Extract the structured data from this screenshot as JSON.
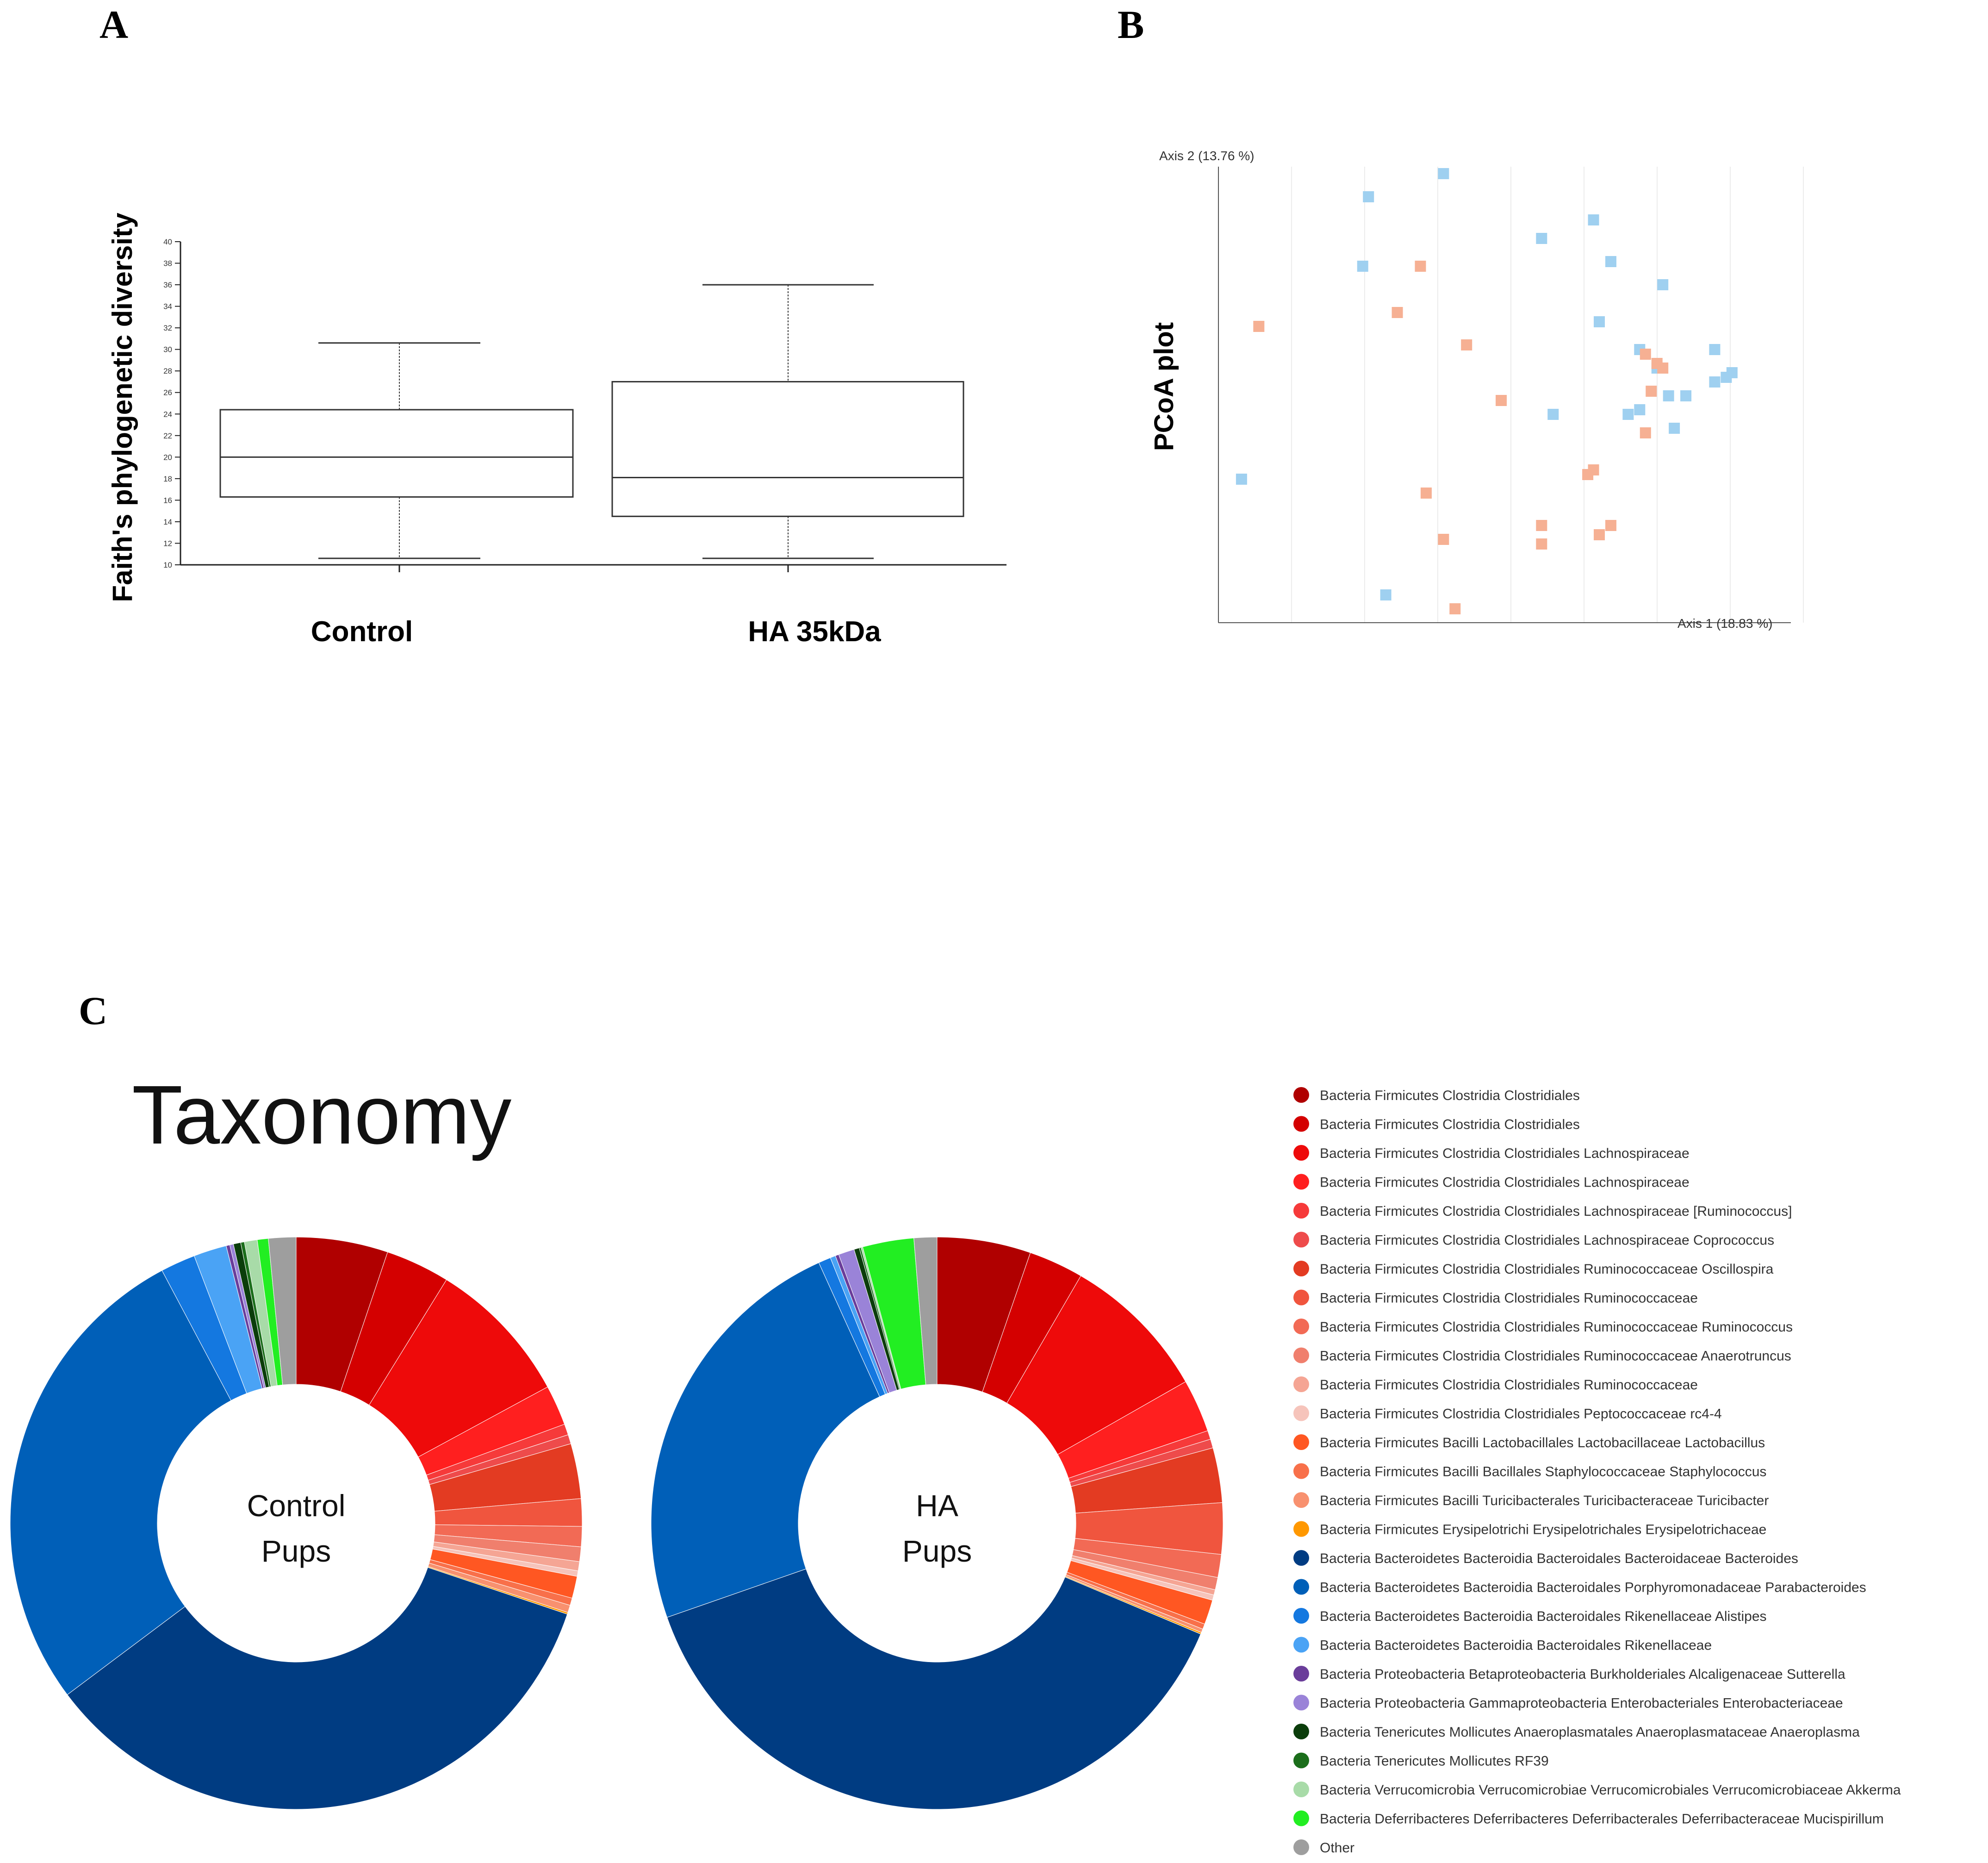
{
  "panels": {
    "a": {
      "letter": "A"
    },
    "b": {
      "letter": "B"
    },
    "c": {
      "letter": "C"
    }
  },
  "chart_data": [
    {
      "id": "panel-a",
      "type": "box",
      "title": "",
      "xlabel": "",
      "ylabel": "Faith's phylogenetic diversity",
      "ylim": [
        10,
        40
      ],
      "yticks": [
        10,
        12,
        14,
        16,
        18,
        20,
        22,
        24,
        26,
        28,
        30,
        32,
        34,
        36,
        38,
        40
      ],
      "grid": false,
      "categories": [
        "Control",
        "HA 35kDa"
      ],
      "boxes": [
        {
          "category": "Control",
          "min": 10.6,
          "q1": 16.3,
          "median": 20.0,
          "q3": 24.4,
          "max": 30.6
        },
        {
          "category": "HA 35kDa",
          "min": 10.6,
          "q1": 14.5,
          "median": 18.1,
          "q3": 27.0,
          "max": 36.0
        }
      ]
    },
    {
      "id": "panel-b",
      "type": "scatter",
      "title": "",
      "side_label": "PCoA plot",
      "xlabel": "Axis 1 (18.83 %)",
      "ylabel": "Axis 2 (13.76 %)",
      "xlim": [
        0,
        1
      ],
      "ylim": [
        0,
        1
      ],
      "grid": "vertical",
      "legend": "none",
      "colors": {
        "blue": "#9fd0f0",
        "orange": "#f6b093"
      },
      "series": [
        {
          "color": "blue",
          "points": [
            [
              0.26,
              0.92
            ],
            [
              0.39,
              0.97
            ],
            [
              0.56,
              0.83
            ],
            [
              0.65,
              0.87
            ],
            [
              0.25,
              0.77
            ],
            [
              0.68,
              0.78
            ],
            [
              0.77,
              0.73
            ],
            [
              0.66,
              0.65
            ],
            [
              0.73,
              0.59
            ],
            [
              0.76,
              0.55
            ],
            [
              0.86,
              0.59
            ],
            [
              0.88,
              0.53
            ],
            [
              0.89,
              0.54
            ],
            [
              0.86,
              0.52
            ],
            [
              0.81,
              0.49
            ],
            [
              0.78,
              0.49
            ],
            [
              0.58,
              0.45
            ],
            [
              0.73,
              0.46
            ],
            [
              0.71,
              0.45
            ],
            [
              0.79,
              0.42
            ],
            [
              0.04,
              0.31
            ],
            [
              0.29,
              0.06
            ]
          ]
        },
        {
          "color": "orange",
          "points": [
            [
              0.35,
              0.77
            ],
            [
              0.07,
              0.64
            ],
            [
              0.31,
              0.67
            ],
            [
              0.43,
              0.6
            ],
            [
              0.74,
              0.58
            ],
            [
              0.76,
              0.56
            ],
            [
              0.77,
              0.55
            ],
            [
              0.75,
              0.5
            ],
            [
              0.49,
              0.48
            ],
            [
              0.74,
              0.41
            ],
            [
              0.65,
              0.33
            ],
            [
              0.64,
              0.32
            ],
            [
              0.36,
              0.28
            ],
            [
              0.56,
              0.21
            ],
            [
              0.68,
              0.21
            ],
            [
              0.39,
              0.18
            ],
            [
              0.56,
              0.17
            ],
            [
              0.66,
              0.19
            ],
            [
              0.41,
              0.03
            ]
          ]
        }
      ]
    },
    {
      "id": "panel-c",
      "type": "pie",
      "variant": "donut",
      "title": "Taxonomy",
      "legend": "right",
      "categories": [
        "Bacteria Firmicutes Clostridia Clostridiales",
        "Bacteria Firmicutes Clostridia Clostridiales",
        "Bacteria Firmicutes Clostridia Clostridiales Lachnospiraceae",
        "Bacteria Firmicutes Clostridia Clostridiales Lachnospiraceae",
        "Bacteria Firmicutes Clostridia Clostridiales Lachnospiraceae [Ruminococcus]",
        "Bacteria Firmicutes Clostridia Clostridiales Lachnospiraceae Coprococcus",
        "Bacteria Firmicutes Clostridia Clostridiales Ruminococcaceae Oscillospira",
        "Bacteria Firmicutes Clostridia Clostridiales Ruminococcaceae",
        "Bacteria Firmicutes Clostridia Clostridiales Ruminococcaceae Ruminococcus",
        "Bacteria Firmicutes Clostridia Clostridiales Ruminococcaceae Anaerotruncus",
        "Bacteria Firmicutes Clostridia Clostridiales Ruminococcaceae",
        "Bacteria Firmicutes Clostridia Clostridiales Peptococcaceae rc4-4",
        "Bacteria Firmicutes Bacilli Lactobacillales Lactobacillaceae Lactobacillus",
        "Bacteria Firmicutes Bacilli Bacillales Staphylococcaceae Staphylococcus",
        "Bacteria Firmicutes Bacilli Turicibacterales Turicibacteraceae Turicibacter",
        "Bacteria Firmicutes Erysipelotrichi Erysipelotrichales Erysipelotrichaceae",
        "Bacteria Bacteroidetes Bacteroidia Bacteroidales Bacteroidaceae Bacteroides",
        "Bacteria Bacteroidetes Bacteroidia Bacteroidales Porphyromonadaceae Parabacteroides",
        "Bacteria Bacteroidetes Bacteroidia Bacteroidales Rikenellaceae Alistipes",
        "Bacteria Bacteroidetes Bacteroidia Bacteroidales Rikenellaceae",
        "Bacteria Proteobacteria Betaproteobacteria Burkholderiales Alcaligenaceae Sutterella",
        "Bacteria Proteobacteria Gammaproteobacteria Enterobacteriales Enterobacteriaceae",
        "Bacteria Tenericutes Mollicutes Anaeroplasmatales Anaeroplasmataceae Anaeroplasma",
        "Bacteria Tenericutes Mollicutes RF39",
        "Bacteria Verrucomicrobia Verrucomicrobiae Verrucomicrobiales Verrucomicrobiaceae Akkerma",
        "Bacteria Deferribacteres Deferribacteres Deferribacterales Deferribacteraceae Mucispirillum",
        "Other"
      ],
      "colors": [
        "#b00000",
        "#d40000",
        "#ee0a0a",
        "#ff1f1f",
        "#f63a3a",
        "#ee4b4b",
        "#e33b22",
        "#f0553e",
        "#f26a55",
        "#f07f6d",
        "#f5a594",
        "#f6c4bb",
        "#ff5722",
        "#f8704a",
        "#f8916f",
        "#ff9800",
        "#003c82",
        "#005fb8",
        "#1478e0",
        "#4aa3f5",
        "#6a3d9a",
        "#9a83d8",
        "#0b3d0b",
        "#1b6e1b",
        "#a8dba8",
        "#22ee22",
        "#9e9e9e"
      ],
      "series": [
        {
          "name": "Control Pups",
          "center_line1": "Control",
          "center_line2": "Pups",
          "values": [
            5.0,
            3.5,
            8.0,
            2.2,
            0.6,
            0.5,
            3.0,
            1.5,
            1.1,
            0.8,
            0.5,
            0.3,
            1.2,
            0.4,
            0.4,
            0.1,
            33.4,
            26.5,
            1.9,
            1.8,
            0.2,
            0.2,
            0.4,
            0.2,
            0.7,
            0.6,
            1.5
          ]
        },
        {
          "name": "HA Pups",
          "center_line1": "HA",
          "center_line2": "Pups",
          "values": [
            5.3,
            3.1,
            8.4,
            3.0,
            0.5,
            0.5,
            3.1,
            2.9,
            1.3,
            0.7,
            0.3,
            0.3,
            1.4,
            0.3,
            0.2,
            0.1,
            38.4,
            23.6,
            0.7,
            0.3,
            0.2,
            0.9,
            0.3,
            0.1,
            0.1,
            2.9,
            1.3
          ]
        }
      ]
    }
  ]
}
